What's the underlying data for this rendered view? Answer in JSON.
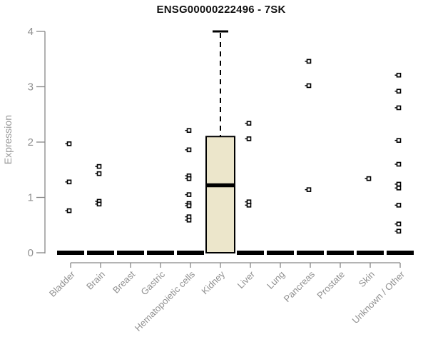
{
  "chart_data": {
    "type": "boxplot",
    "title": "ENSG00000222496 - 7SK",
    "ylabel": "Expression",
    "xlabel": "",
    "ylim": [
      0,
      4
    ],
    "yticks": [
      0,
      1,
      2,
      3,
      4
    ],
    "grid": false,
    "legend": null,
    "categories": [
      "Bladder",
      "Brain",
      "Breast",
      "Gastric",
      "Hematopoietic cells",
      "Kidney",
      "Liver",
      "Lung",
      "Pancreas",
      "Prostate",
      "Skin",
      "Unknown / Other"
    ],
    "series": [
      {
        "name": "Bladder",
        "whisker_low": 0,
        "q1": 0,
        "median": 0,
        "q3": 0,
        "whisker_high": 0,
        "outliers": [
          1.97,
          1.28,
          0.76
        ]
      },
      {
        "name": "Brain",
        "whisker_low": 0,
        "q1": 0,
        "median": 0,
        "q3": 0,
        "whisker_high": 0,
        "outliers": [
          1.56,
          1.43,
          0.93,
          0.88
        ]
      },
      {
        "name": "Breast",
        "whisker_low": 0,
        "q1": 0,
        "median": 0,
        "q3": 0,
        "whisker_high": 0,
        "outliers": []
      },
      {
        "name": "Gastric",
        "whisker_low": 0,
        "q1": 0,
        "median": 0,
        "q3": 0,
        "whisker_high": 0,
        "outliers": []
      },
      {
        "name": "Hematopoietic cells",
        "whisker_low": 0,
        "q1": 0,
        "median": 0,
        "q3": 0,
        "whisker_high": 0,
        "outliers": [
          2.21,
          1.86,
          1.39,
          1.34,
          1.05,
          0.89,
          0.85,
          0.65,
          0.59
        ]
      },
      {
        "name": "Kidney",
        "whisker_low": 0,
        "q1": 0,
        "median": 1.22,
        "q3": 2.1,
        "whisker_high": 4.0,
        "outliers": []
      },
      {
        "name": "Liver",
        "whisker_low": 0,
        "q1": 0,
        "median": 0,
        "q3": 0,
        "whisker_high": 0,
        "outliers": [
          2.34,
          2.06,
          0.92,
          0.86
        ]
      },
      {
        "name": "Lung",
        "whisker_low": 0,
        "q1": 0,
        "median": 0,
        "q3": 0,
        "whisker_high": 0,
        "outliers": []
      },
      {
        "name": "Pancreas",
        "whisker_low": 0,
        "q1": 0,
        "median": 0,
        "q3": 0,
        "whisker_high": 0,
        "outliers": [
          3.46,
          3.02,
          1.14
        ]
      },
      {
        "name": "Prostate",
        "whisker_low": 0,
        "q1": 0,
        "median": 0,
        "q3": 0,
        "whisker_high": 0,
        "outliers": []
      },
      {
        "name": "Skin",
        "whisker_low": 0,
        "q1": 0,
        "median": 0,
        "q3": 0,
        "whisker_high": 0,
        "outliers": [
          1.34
        ]
      },
      {
        "name": "Unknown / Other",
        "whisker_low": 0,
        "q1": 0,
        "median": 0,
        "q3": 0,
        "whisker_high": 0,
        "outliers": [
          3.21,
          2.92,
          2.62,
          2.03,
          1.6,
          1.24,
          1.17,
          0.86,
          0.52,
          0.39
        ]
      }
    ],
    "colors": {
      "box_fill": "#ece6cb",
      "box_stroke": "#000000",
      "median": "#000000",
      "axis": "#878787",
      "tick_label": "#909090",
      "title": "#111111",
      "outlier_stroke": "#000000",
      "outlier_fill": "#ffffff"
    }
  }
}
